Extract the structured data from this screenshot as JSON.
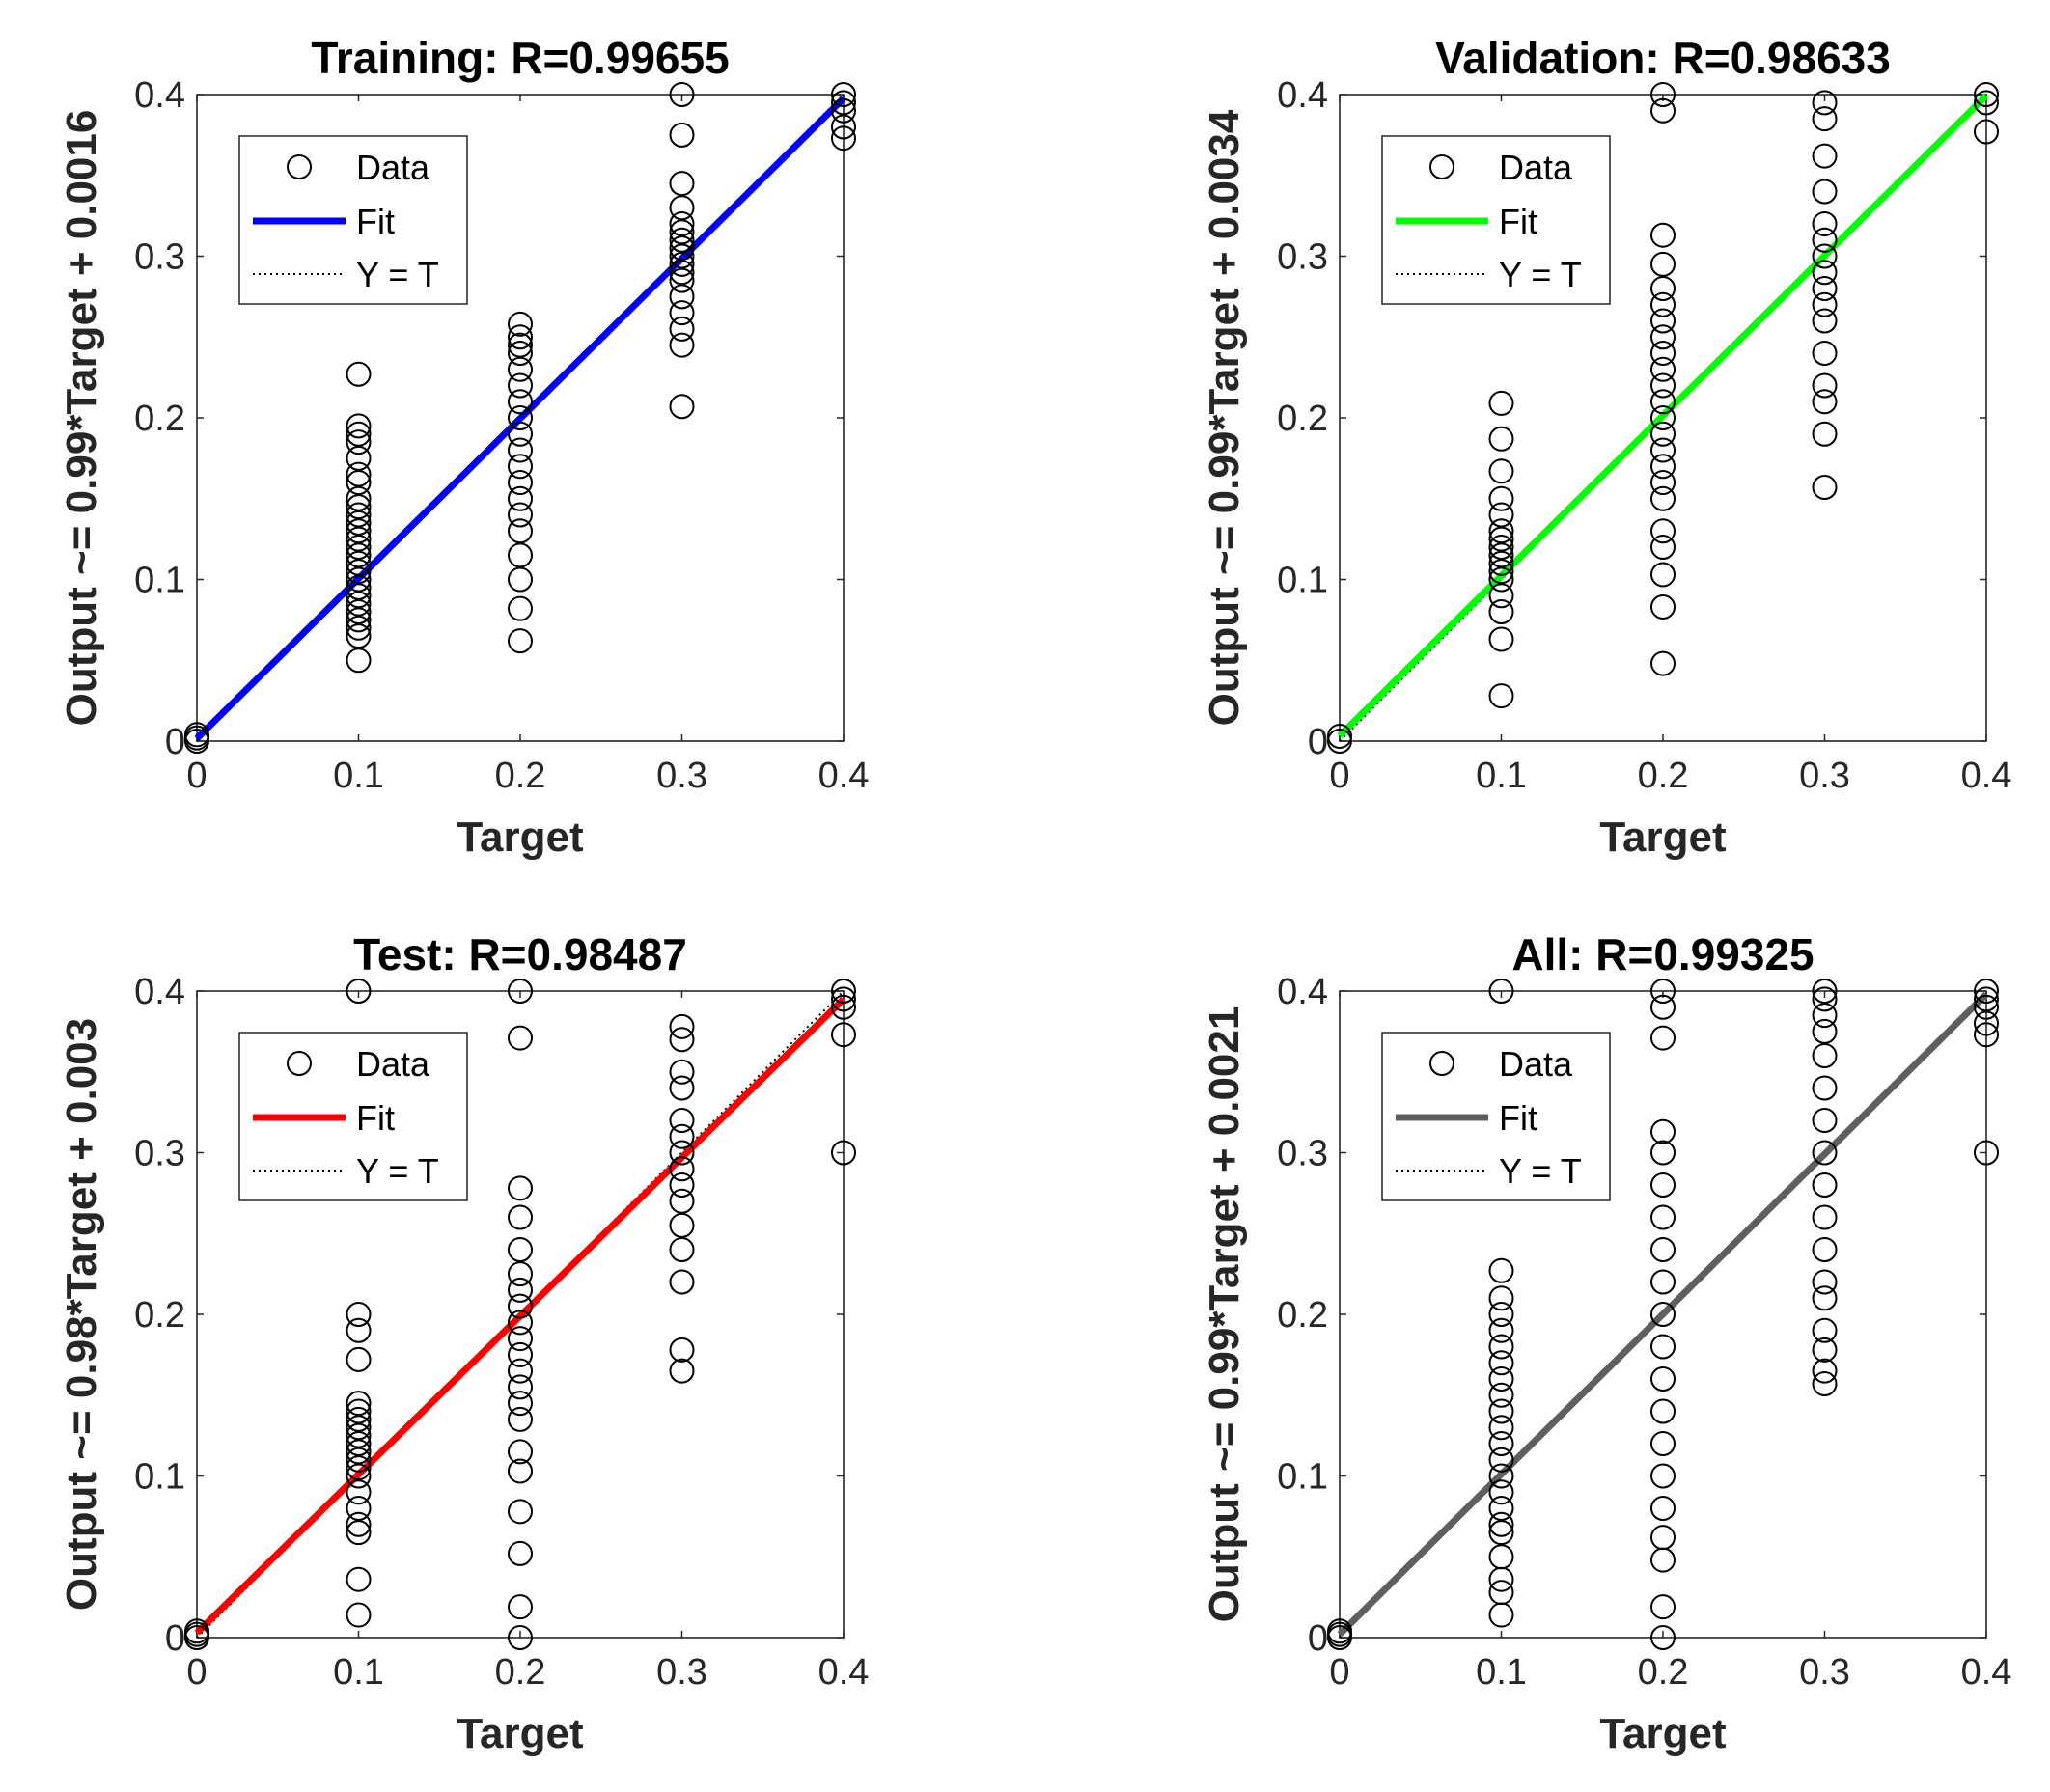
{
  "chart_data": [
    {
      "type": "scatter",
      "title": "Training: R=0.99655",
      "xlabel": "Target",
      "ylabel": "Output ~= 0.99*Target + 0.0016",
      "xlim": [
        0,
        0.4
      ],
      "ylim": [
        0,
        0.4
      ],
      "xticks": [
        "0",
        "0.1",
        "0.2",
        "0.3",
        "0.4"
      ],
      "yticks": [
        "0",
        "0.1",
        "0.2",
        "0.3",
        "0.4"
      ],
      "fit": {
        "slope": 0.99,
        "intercept": 0.0016,
        "color": "#0000ff"
      },
      "legend": {
        "placement": "top-left",
        "entries": [
          "Data",
          "Fit",
          "Y = T"
        ]
      },
      "series": [
        {
          "x": 0,
          "y": [
            0,
            0.002,
            0.004
          ]
        },
        {
          "x": 0.1,
          "y": [
            0.05,
            0.065,
            0.07,
            0.075,
            0.08,
            0.085,
            0.09,
            0.095,
            0.1,
            0.105,
            0.11,
            0.115,
            0.12,
            0.125,
            0.13,
            0.135,
            0.14,
            0.145,
            0.15,
            0.16,
            0.165,
            0.175,
            0.185,
            0.19,
            0.195,
            0.227
          ]
        },
        {
          "x": 0.2,
          "y": [
            0.062,
            0.082,
            0.1,
            0.115,
            0.13,
            0.14,
            0.15,
            0.16,
            0.17,
            0.18,
            0.19,
            0.2,
            0.21,
            0.22,
            0.23,
            0.24,
            0.245,
            0.25,
            0.258
          ]
        },
        {
          "x": 0.3,
          "y": [
            0.207,
            0.245,
            0.255,
            0.265,
            0.275,
            0.285,
            0.29,
            0.295,
            0.3,
            0.305,
            0.31,
            0.315,
            0.32,
            0.33,
            0.345,
            0.375,
            0.4
          ]
        },
        {
          "x": 0.4,
          "y": [
            0.373,
            0.38,
            0.39,
            0.395,
            0.4
          ]
        }
      ]
    },
    {
      "type": "scatter",
      "title": "Validation: R=0.98633",
      "xlabel": "Target",
      "ylabel": "Output ~= 0.99*Target + 0.0034",
      "xlim": [
        0,
        0.4
      ],
      "ylim": [
        0,
        0.4
      ],
      "xticks": [
        "0",
        "0.1",
        "0.2",
        "0.3",
        "0.4"
      ],
      "yticks": [
        "0",
        "0.1",
        "0.2",
        "0.3",
        "0.4"
      ],
      "fit": {
        "slope": 0.99,
        "intercept": 0.0034,
        "color": "#00ff00"
      },
      "legend": {
        "placement": "top-left",
        "entries": [
          "Data",
          "Fit",
          "Y = T"
        ]
      },
      "series": [
        {
          "x": 0,
          "y": [
            0,
            0.003
          ]
        },
        {
          "x": 0.1,
          "y": [
            0.028,
            0.063,
            0.08,
            0.09,
            0.1,
            0.105,
            0.11,
            0.115,
            0.12,
            0.125,
            0.13,
            0.14,
            0.15,
            0.167,
            0.187,
            0.209
          ]
        },
        {
          "x": 0.2,
          "y": [
            0.048,
            0.083,
            0.103,
            0.12,
            0.13,
            0.15,
            0.16,
            0.17,
            0.18,
            0.19,
            0.2,
            0.21,
            0.22,
            0.23,
            0.24,
            0.25,
            0.26,
            0.27,
            0.28,
            0.295,
            0.313,
            0.39,
            0.4
          ]
        },
        {
          "x": 0.3,
          "y": [
            0.157,
            0.19,
            0.21,
            0.22,
            0.24,
            0.26,
            0.27,
            0.28,
            0.29,
            0.3,
            0.31,
            0.32,
            0.34,
            0.362,
            0.385,
            0.395
          ]
        },
        {
          "x": 0.4,
          "y": [
            0.377,
            0.395,
            0.4
          ]
        }
      ]
    },
    {
      "type": "scatter",
      "title": "Test: R=0.98487",
      "xlabel": "Target",
      "ylabel": "Output ~= 0.98*Target + 0.003",
      "xlim": [
        0,
        0.4
      ],
      "ylim": [
        0,
        0.4
      ],
      "xticks": [
        "0",
        "0.1",
        "0.2",
        "0.3",
        "0.4"
      ],
      "yticks": [
        "0",
        "0.1",
        "0.2",
        "0.3",
        "0.4"
      ],
      "fit": {
        "slope": 0.98,
        "intercept": 0.003,
        "color": "#ff0000"
      },
      "legend": {
        "placement": "top-left",
        "entries": [
          "Data",
          "Fit",
          "Y = T"
        ]
      },
      "series": [
        {
          "x": 0,
          "y": [
            0,
            0.002,
            0.004
          ]
        },
        {
          "x": 0.1,
          "y": [
            0.014,
            0.036,
            0.065,
            0.07,
            0.08,
            0.09,
            0.1,
            0.105,
            0.11,
            0.115,
            0.12,
            0.125,
            0.13,
            0.135,
            0.14,
            0.145,
            0.172,
            0.19,
            0.2,
            0.4
          ]
        },
        {
          "x": 0.2,
          "y": [
            0,
            0.019,
            0.052,
            0.078,
            0.103,
            0.115,
            0.135,
            0.145,
            0.155,
            0.165,
            0.175,
            0.185,
            0.195,
            0.205,
            0.215,
            0.225,
            0.24,
            0.26,
            0.278,
            0.371,
            0.4
          ]
        },
        {
          "x": 0.3,
          "y": [
            0.165,
            0.178,
            0.22,
            0.24,
            0.255,
            0.27,
            0.28,
            0.29,
            0.3,
            0.31,
            0.32,
            0.34,
            0.35,
            0.37,
            0.378
          ]
        },
        {
          "x": 0.4,
          "y": [
            0.3,
            0.373,
            0.39,
            0.395,
            0.4
          ]
        }
      ]
    },
    {
      "type": "scatter",
      "title": "All: R=0.99325",
      "xlabel": "Target",
      "ylabel": "Output ~= 0.99*Target + 0.0021",
      "xlim": [
        0,
        0.4
      ],
      "ylim": [
        0,
        0.4
      ],
      "xticks": [
        "0",
        "0.1",
        "0.2",
        "0.3",
        "0.4"
      ],
      "yticks": [
        "0",
        "0.1",
        "0.2",
        "0.3",
        "0.4"
      ],
      "fit": {
        "slope": 0.99,
        "intercept": 0.0021,
        "color": "#5f5f5f"
      },
      "legend": {
        "placement": "top-left",
        "entries": [
          "Data",
          "Fit",
          "Y = T"
        ]
      },
      "series": [
        {
          "x": 0,
          "y": [
            0,
            0.002,
            0.004
          ]
        },
        {
          "x": 0.1,
          "y": [
            0.014,
            0.028,
            0.036,
            0.05,
            0.065,
            0.07,
            0.08,
            0.09,
            0.1,
            0.11,
            0.12,
            0.13,
            0.14,
            0.15,
            0.16,
            0.17,
            0.18,
            0.19,
            0.2,
            0.21,
            0.227,
            0.4
          ]
        },
        {
          "x": 0.2,
          "y": [
            0,
            0.019,
            0.048,
            0.062,
            0.08,
            0.1,
            0.12,
            0.14,
            0.16,
            0.18,
            0.2,
            0.22,
            0.24,
            0.26,
            0.28,
            0.3,
            0.313,
            0.371,
            0.39,
            0.4
          ]
        },
        {
          "x": 0.3,
          "y": [
            0.157,
            0.165,
            0.178,
            0.19,
            0.21,
            0.22,
            0.24,
            0.26,
            0.28,
            0.3,
            0.32,
            0.34,
            0.36,
            0.375,
            0.385,
            0.395,
            0.4
          ]
        },
        {
          "x": 0.4,
          "y": [
            0.3,
            0.373,
            0.38,
            0.39,
            0.395,
            0.4
          ]
        }
      ]
    }
  ]
}
